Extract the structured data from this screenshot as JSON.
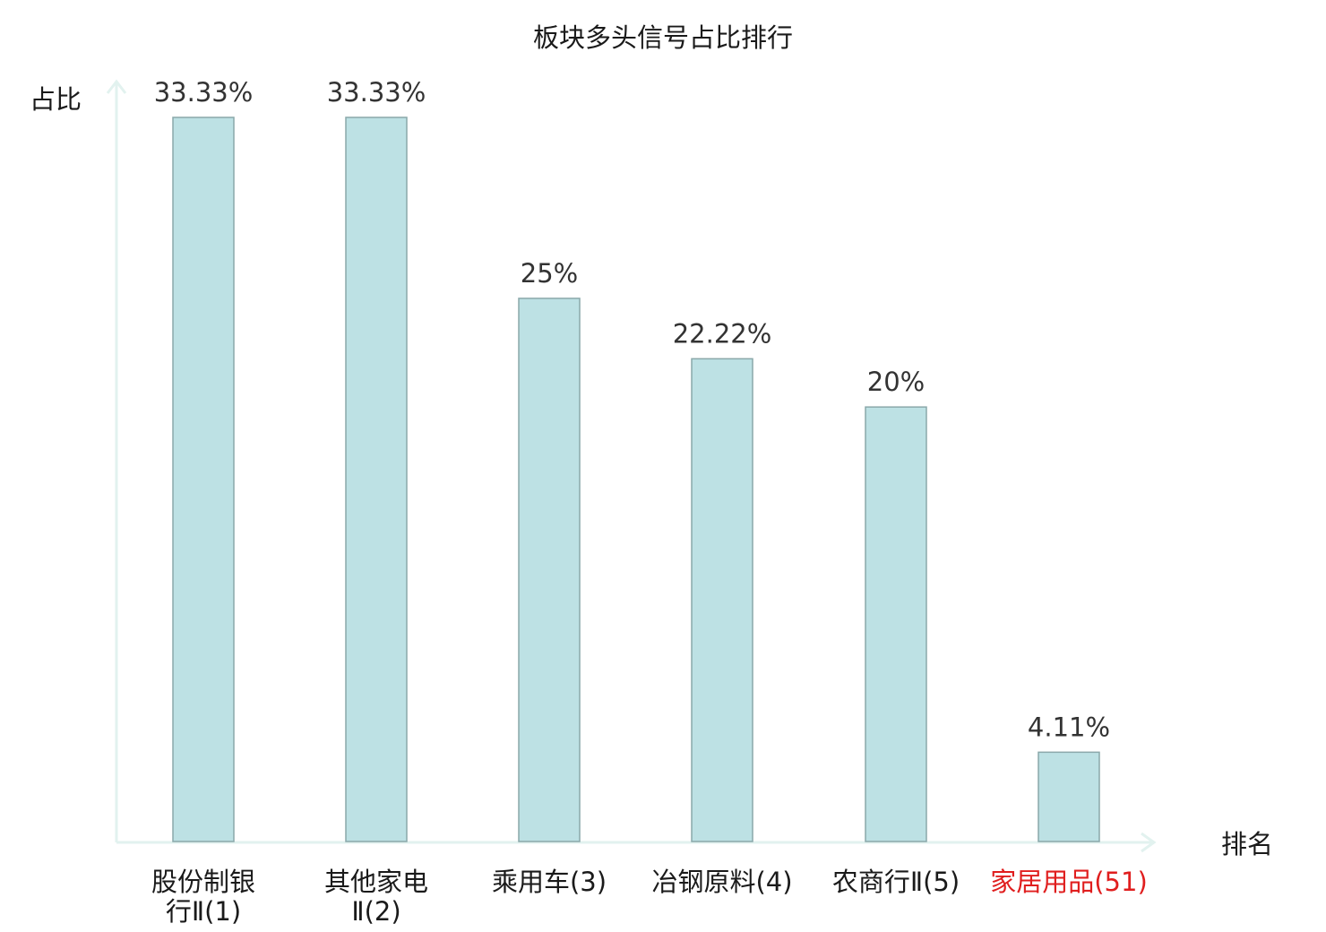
{
  "chart_data": {
    "type": "bar",
    "title": "板块多头信号占比排行",
    "xlabel": "排名",
    "ylabel": "占比",
    "categories": [
      [
        "股份制银",
        "行Ⅱ(1)"
      ],
      [
        "其他家电",
        "Ⅱ(2)"
      ],
      [
        "乘用车(3)"
      ],
      [
        "冶钢原料(4)"
      ],
      [
        "农商行Ⅱ(5)"
      ],
      [
        "家居用品(51)"
      ]
    ],
    "values": [
      33.33,
      33.33,
      25,
      22.22,
      20,
      4.11
    ],
    "value_labels": [
      "33.33%",
      "33.33%",
      "25%",
      "22.22%",
      "20%",
      "4.11%"
    ],
    "ylim": [
      0,
      33.33
    ],
    "highlight_index": 5,
    "colors": {
      "bar_fill": "#bde1e4",
      "bar_stroke": "#8aa8aa",
      "axis": "#e2f2ef",
      "category_text": "#1a1a1a",
      "highlight_text": "#e01e1e"
    },
    "grid": false,
    "legend": "none"
  }
}
